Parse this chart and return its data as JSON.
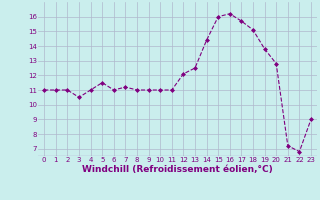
{
  "x": [
    0,
    1,
    2,
    3,
    4,
    5,
    6,
    7,
    8,
    9,
    10,
    11,
    12,
    13,
    14,
    15,
    16,
    17,
    18,
    19,
    20,
    21,
    22,
    23
  ],
  "y": [
    11,
    11,
    11,
    10.5,
    11,
    11.5,
    11,
    11.2,
    11,
    11,
    11,
    11,
    12.1,
    12.5,
    14.4,
    16,
    16.2,
    15.7,
    15.1,
    13.8,
    12.8,
    7.2,
    6.8,
    9.0
  ],
  "line_color": "#800080",
  "marker": "D",
  "marker_size": 2,
  "bg_color": "#caeeed",
  "grid_color": "#b0b8cc",
  "xlabel": "Windchill (Refroidissement éolien,°C)",
  "xlabel_color": "#800080",
  "ylim": [
    6.5,
    17
  ],
  "yticks": [
    7,
    8,
    9,
    10,
    11,
    12,
    13,
    14,
    15,
    16
  ],
  "xlim": [
    -0.5,
    23.5
  ],
  "xticks": [
    0,
    1,
    2,
    3,
    4,
    5,
    6,
    7,
    8,
    9,
    10,
    11,
    12,
    13,
    14,
    15,
    16,
    17,
    18,
    19,
    20,
    21,
    22,
    23
  ],
  "tick_fontsize": 5,
  "xlabel_fontsize": 6.5,
  "tick_color": "#800080"
}
